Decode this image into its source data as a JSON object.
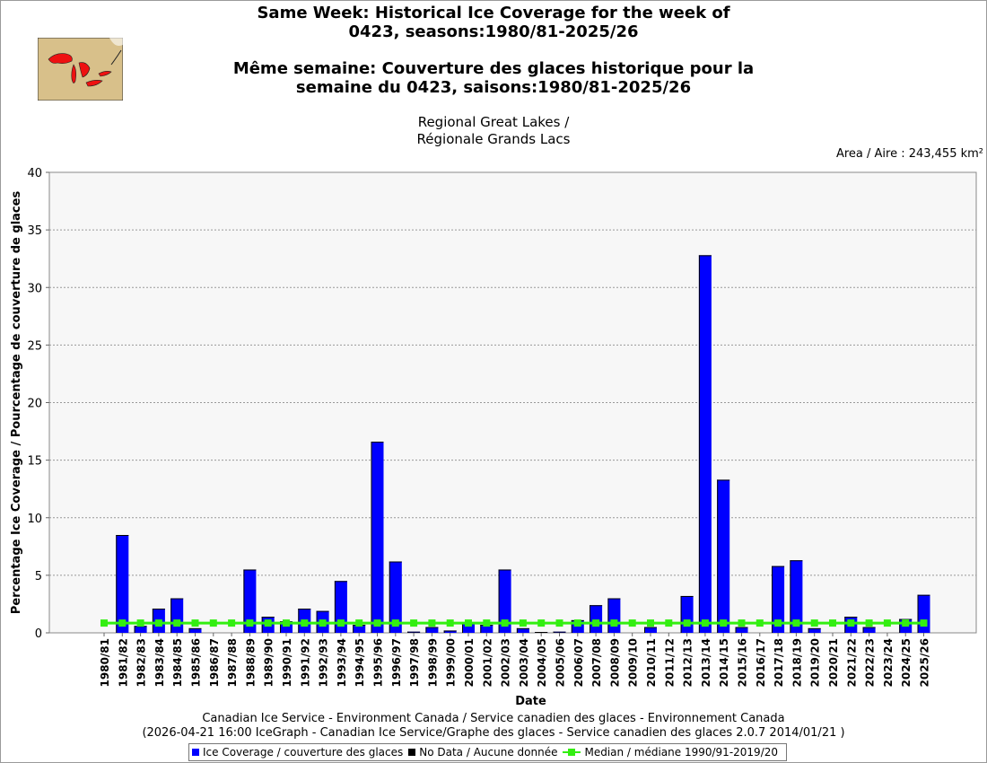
{
  "title_en_1": "Same Week: Historical Ice Coverage for the week of",
  "title_en_2": "0423, seasons:1980/81-2025/26",
  "title_fr_1": "Même semaine: Couverture des glaces historique pour la",
  "title_fr_2": "semaine du 0423, saisons:1980/81-2025/26",
  "region_1": "Regional Great Lakes /",
  "region_2": "Régionale Grands Lacs",
  "area_label": "Area / Aire : 243,455 km²",
  "footer_1": "Canadian Ice Service - Environment Canada / Service canadien des glaces - Environnement Canada",
  "footer_2": "(2026-04-21 16:00 IceGraph - Canadian Ice Service/Graphe des glaces - Service canadien des glaces 2.0.7 2014/01/21 )",
  "legend": {
    "ice": "Ice Coverage / couverture des glaces",
    "nodata": "No Data / Aucune donnée",
    "median": "Median / médiane 1990/91-2019/20"
  },
  "colors": {
    "ice": "#0000ff",
    "nodata": "#000000",
    "median": "#33ee11",
    "plot_bg": "#f7f7f7",
    "map_land": "#d8c08a",
    "map_water": "#ee1111"
  },
  "chart_data": {
    "type": "bar",
    "xlabel": "Date",
    "ylabel": "Percentage Ice Coverage / Pourcentage de couverture de glaces",
    "ylim": [
      0,
      40
    ],
    "yticks": [
      0,
      5,
      10,
      15,
      20,
      25,
      30,
      35,
      40
    ],
    "grid": true,
    "legend_position": "bottom",
    "categories": [
      "1980/81",
      "1981/82",
      "1982/83",
      "1983/84",
      "1984/85",
      "1985/86",
      "1986/87",
      "1987/88",
      "1988/89",
      "1989/90",
      "1990/91",
      "1991/92",
      "1992/93",
      "1993/94",
      "1994/95",
      "1995/96",
      "1996/97",
      "1997/98",
      "1998/99",
      "1999/00",
      "2000/01",
      "2001/02",
      "2002/03",
      "2003/04",
      "2004/05",
      "2005/06",
      "2006/07",
      "2007/08",
      "2008/09",
      "2009/10",
      "2010/11",
      "2011/12",
      "2012/13",
      "2013/14",
      "2014/15",
      "2015/16",
      "2016/17",
      "2017/18",
      "2018/19",
      "2019/20",
      "2020/21",
      "2021/22",
      "2022/23",
      "2023/24",
      "2024/25",
      "2025/26"
    ],
    "series": [
      {
        "name": "Ice Coverage / couverture des glaces",
        "values": [
          0,
          8.5,
          0.6,
          2.1,
          3.0,
          0.4,
          0,
          0,
          5.5,
          1.4,
          1.0,
          2.1,
          1.9,
          4.5,
          0.7,
          16.6,
          6.2,
          0.1,
          0.5,
          0.2,
          0.9,
          0.7,
          5.5,
          0.4,
          0.05,
          0.1,
          1.1,
          2.4,
          3.0,
          0,
          0.5,
          0,
          3.2,
          32.8,
          13.3,
          0.5,
          0,
          5.8,
          6.3,
          0.4,
          0,
          1.4,
          0.5,
          0,
          1.2,
          3.3
        ]
      },
      {
        "name": "Median / médiane 1990/91-2019/20",
        "values": [
          0.85,
          0.85,
          0.85,
          0.85,
          0.85,
          0.85,
          0.85,
          0.85,
          0.85,
          0.85,
          0.85,
          0.85,
          0.85,
          0.85,
          0.85,
          0.85,
          0.85,
          0.85,
          0.85,
          0.85,
          0.85,
          0.85,
          0.85,
          0.85,
          0.85,
          0.85,
          0.85,
          0.85,
          0.85,
          0.85,
          0.85,
          0.85,
          0.85,
          0.85,
          0.85,
          0.85,
          0.85,
          0.85,
          0.85,
          0.85,
          0.85,
          0.85,
          0.85,
          0.85,
          0.85,
          0.85
        ]
      }
    ]
  }
}
